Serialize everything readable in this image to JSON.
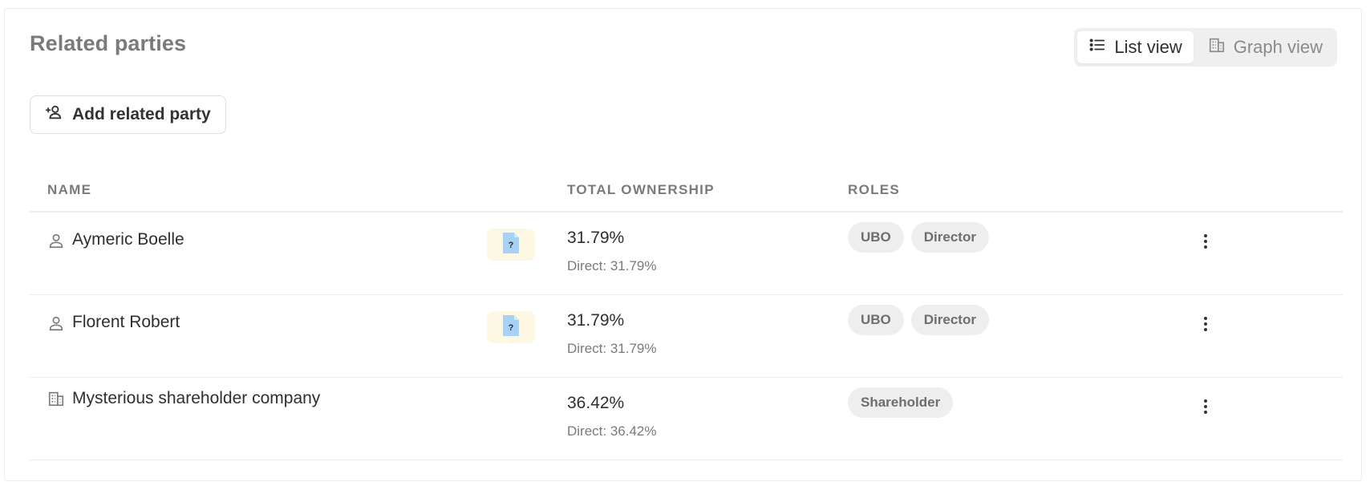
{
  "header": {
    "title": "Related parties",
    "views": [
      {
        "label": "List view",
        "icon": "list-icon",
        "active": true
      },
      {
        "label": "Graph view",
        "icon": "building-icon",
        "active": false
      }
    ]
  },
  "actions": {
    "add_label": "Add related party"
  },
  "table": {
    "columns": {
      "name": "NAME",
      "ownership": "TOTAL OWNERSHIP",
      "roles": "ROLES"
    },
    "rows": [
      {
        "type": "person",
        "name": "Aymeric Boelle",
        "doc_badge": "?",
        "ownership_total": "31.79%",
        "ownership_direct": "Direct: 31.79%",
        "roles": [
          "UBO",
          "Director"
        ]
      },
      {
        "type": "person",
        "name": "Florent Robert",
        "doc_badge": "?",
        "ownership_total": "31.79%",
        "ownership_direct": "Direct: 31.79%",
        "roles": [
          "UBO",
          "Director"
        ]
      },
      {
        "type": "company",
        "name": "Mysterious shareholder company",
        "ownership_total": "36.42%",
        "ownership_direct": "Direct: 36.42%",
        "roles": [
          "Shareholder"
        ]
      }
    ]
  },
  "colors": {
    "badge_bg": "#fdf8e3",
    "doc_icon": "#a9d1f5",
    "chip_bg": "#eeeeee"
  }
}
